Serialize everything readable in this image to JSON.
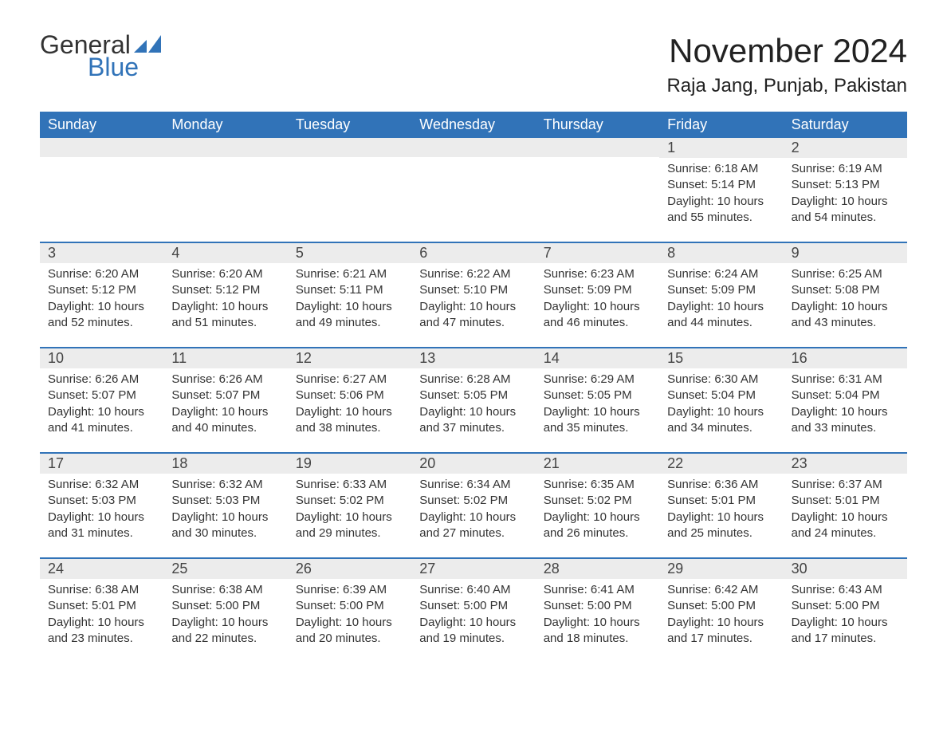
{
  "brand": {
    "word1": "General",
    "word2": "Blue",
    "accent": "#3173b8"
  },
  "title": "November 2024",
  "location": "Raja Jang, Punjab, Pakistan",
  "day_labels": [
    "Sunday",
    "Monday",
    "Tuesday",
    "Wednesday",
    "Thursday",
    "Friday",
    "Saturday"
  ],
  "colors": {
    "header_bg": "#3173b8",
    "header_text": "#ffffff",
    "day_number_bg": "#ececec",
    "text": "#333333",
    "row_border": "#3173b8"
  },
  "typography": {
    "title_fontsize": 42,
    "location_fontsize": 24,
    "header_fontsize": 18,
    "daynum_fontsize": 18,
    "body_fontsize": 15
  },
  "weeks": [
    [
      {
        "n": "",
        "sunrise": "",
        "sunset": "",
        "daylight": ""
      },
      {
        "n": "",
        "sunrise": "",
        "sunset": "",
        "daylight": ""
      },
      {
        "n": "",
        "sunrise": "",
        "sunset": "",
        "daylight": ""
      },
      {
        "n": "",
        "sunrise": "",
        "sunset": "",
        "daylight": ""
      },
      {
        "n": "",
        "sunrise": "",
        "sunset": "",
        "daylight": ""
      },
      {
        "n": "1",
        "sunrise": "Sunrise: 6:18 AM",
        "sunset": "Sunset: 5:14 PM",
        "daylight": "Daylight: 10 hours and 55 minutes."
      },
      {
        "n": "2",
        "sunrise": "Sunrise: 6:19 AM",
        "sunset": "Sunset: 5:13 PM",
        "daylight": "Daylight: 10 hours and 54 minutes."
      }
    ],
    [
      {
        "n": "3",
        "sunrise": "Sunrise: 6:20 AM",
        "sunset": "Sunset: 5:12 PM",
        "daylight": "Daylight: 10 hours and 52 minutes."
      },
      {
        "n": "4",
        "sunrise": "Sunrise: 6:20 AM",
        "sunset": "Sunset: 5:12 PM",
        "daylight": "Daylight: 10 hours and 51 minutes."
      },
      {
        "n": "5",
        "sunrise": "Sunrise: 6:21 AM",
        "sunset": "Sunset: 5:11 PM",
        "daylight": "Daylight: 10 hours and 49 minutes."
      },
      {
        "n": "6",
        "sunrise": "Sunrise: 6:22 AM",
        "sunset": "Sunset: 5:10 PM",
        "daylight": "Daylight: 10 hours and 47 minutes."
      },
      {
        "n": "7",
        "sunrise": "Sunrise: 6:23 AM",
        "sunset": "Sunset: 5:09 PM",
        "daylight": "Daylight: 10 hours and 46 minutes."
      },
      {
        "n": "8",
        "sunrise": "Sunrise: 6:24 AM",
        "sunset": "Sunset: 5:09 PM",
        "daylight": "Daylight: 10 hours and 44 minutes."
      },
      {
        "n": "9",
        "sunrise": "Sunrise: 6:25 AM",
        "sunset": "Sunset: 5:08 PM",
        "daylight": "Daylight: 10 hours and 43 minutes."
      }
    ],
    [
      {
        "n": "10",
        "sunrise": "Sunrise: 6:26 AM",
        "sunset": "Sunset: 5:07 PM",
        "daylight": "Daylight: 10 hours and 41 minutes."
      },
      {
        "n": "11",
        "sunrise": "Sunrise: 6:26 AM",
        "sunset": "Sunset: 5:07 PM",
        "daylight": "Daylight: 10 hours and 40 minutes."
      },
      {
        "n": "12",
        "sunrise": "Sunrise: 6:27 AM",
        "sunset": "Sunset: 5:06 PM",
        "daylight": "Daylight: 10 hours and 38 minutes."
      },
      {
        "n": "13",
        "sunrise": "Sunrise: 6:28 AM",
        "sunset": "Sunset: 5:05 PM",
        "daylight": "Daylight: 10 hours and 37 minutes."
      },
      {
        "n": "14",
        "sunrise": "Sunrise: 6:29 AM",
        "sunset": "Sunset: 5:05 PM",
        "daylight": "Daylight: 10 hours and 35 minutes."
      },
      {
        "n": "15",
        "sunrise": "Sunrise: 6:30 AM",
        "sunset": "Sunset: 5:04 PM",
        "daylight": "Daylight: 10 hours and 34 minutes."
      },
      {
        "n": "16",
        "sunrise": "Sunrise: 6:31 AM",
        "sunset": "Sunset: 5:04 PM",
        "daylight": "Daylight: 10 hours and 33 minutes."
      }
    ],
    [
      {
        "n": "17",
        "sunrise": "Sunrise: 6:32 AM",
        "sunset": "Sunset: 5:03 PM",
        "daylight": "Daylight: 10 hours and 31 minutes."
      },
      {
        "n": "18",
        "sunrise": "Sunrise: 6:32 AM",
        "sunset": "Sunset: 5:03 PM",
        "daylight": "Daylight: 10 hours and 30 minutes."
      },
      {
        "n": "19",
        "sunrise": "Sunrise: 6:33 AM",
        "sunset": "Sunset: 5:02 PM",
        "daylight": "Daylight: 10 hours and 29 minutes."
      },
      {
        "n": "20",
        "sunrise": "Sunrise: 6:34 AM",
        "sunset": "Sunset: 5:02 PM",
        "daylight": "Daylight: 10 hours and 27 minutes."
      },
      {
        "n": "21",
        "sunrise": "Sunrise: 6:35 AM",
        "sunset": "Sunset: 5:02 PM",
        "daylight": "Daylight: 10 hours and 26 minutes."
      },
      {
        "n": "22",
        "sunrise": "Sunrise: 6:36 AM",
        "sunset": "Sunset: 5:01 PM",
        "daylight": "Daylight: 10 hours and 25 minutes."
      },
      {
        "n": "23",
        "sunrise": "Sunrise: 6:37 AM",
        "sunset": "Sunset: 5:01 PM",
        "daylight": "Daylight: 10 hours and 24 minutes."
      }
    ],
    [
      {
        "n": "24",
        "sunrise": "Sunrise: 6:38 AM",
        "sunset": "Sunset: 5:01 PM",
        "daylight": "Daylight: 10 hours and 23 minutes."
      },
      {
        "n": "25",
        "sunrise": "Sunrise: 6:38 AM",
        "sunset": "Sunset: 5:00 PM",
        "daylight": "Daylight: 10 hours and 22 minutes."
      },
      {
        "n": "26",
        "sunrise": "Sunrise: 6:39 AM",
        "sunset": "Sunset: 5:00 PM",
        "daylight": "Daylight: 10 hours and 20 minutes."
      },
      {
        "n": "27",
        "sunrise": "Sunrise: 6:40 AM",
        "sunset": "Sunset: 5:00 PM",
        "daylight": "Daylight: 10 hours and 19 minutes."
      },
      {
        "n": "28",
        "sunrise": "Sunrise: 6:41 AM",
        "sunset": "Sunset: 5:00 PM",
        "daylight": "Daylight: 10 hours and 18 minutes."
      },
      {
        "n": "29",
        "sunrise": "Sunrise: 6:42 AM",
        "sunset": "Sunset: 5:00 PM",
        "daylight": "Daylight: 10 hours and 17 minutes."
      },
      {
        "n": "30",
        "sunrise": "Sunrise: 6:43 AM",
        "sunset": "Sunset: 5:00 PM",
        "daylight": "Daylight: 10 hours and 17 minutes."
      }
    ]
  ]
}
